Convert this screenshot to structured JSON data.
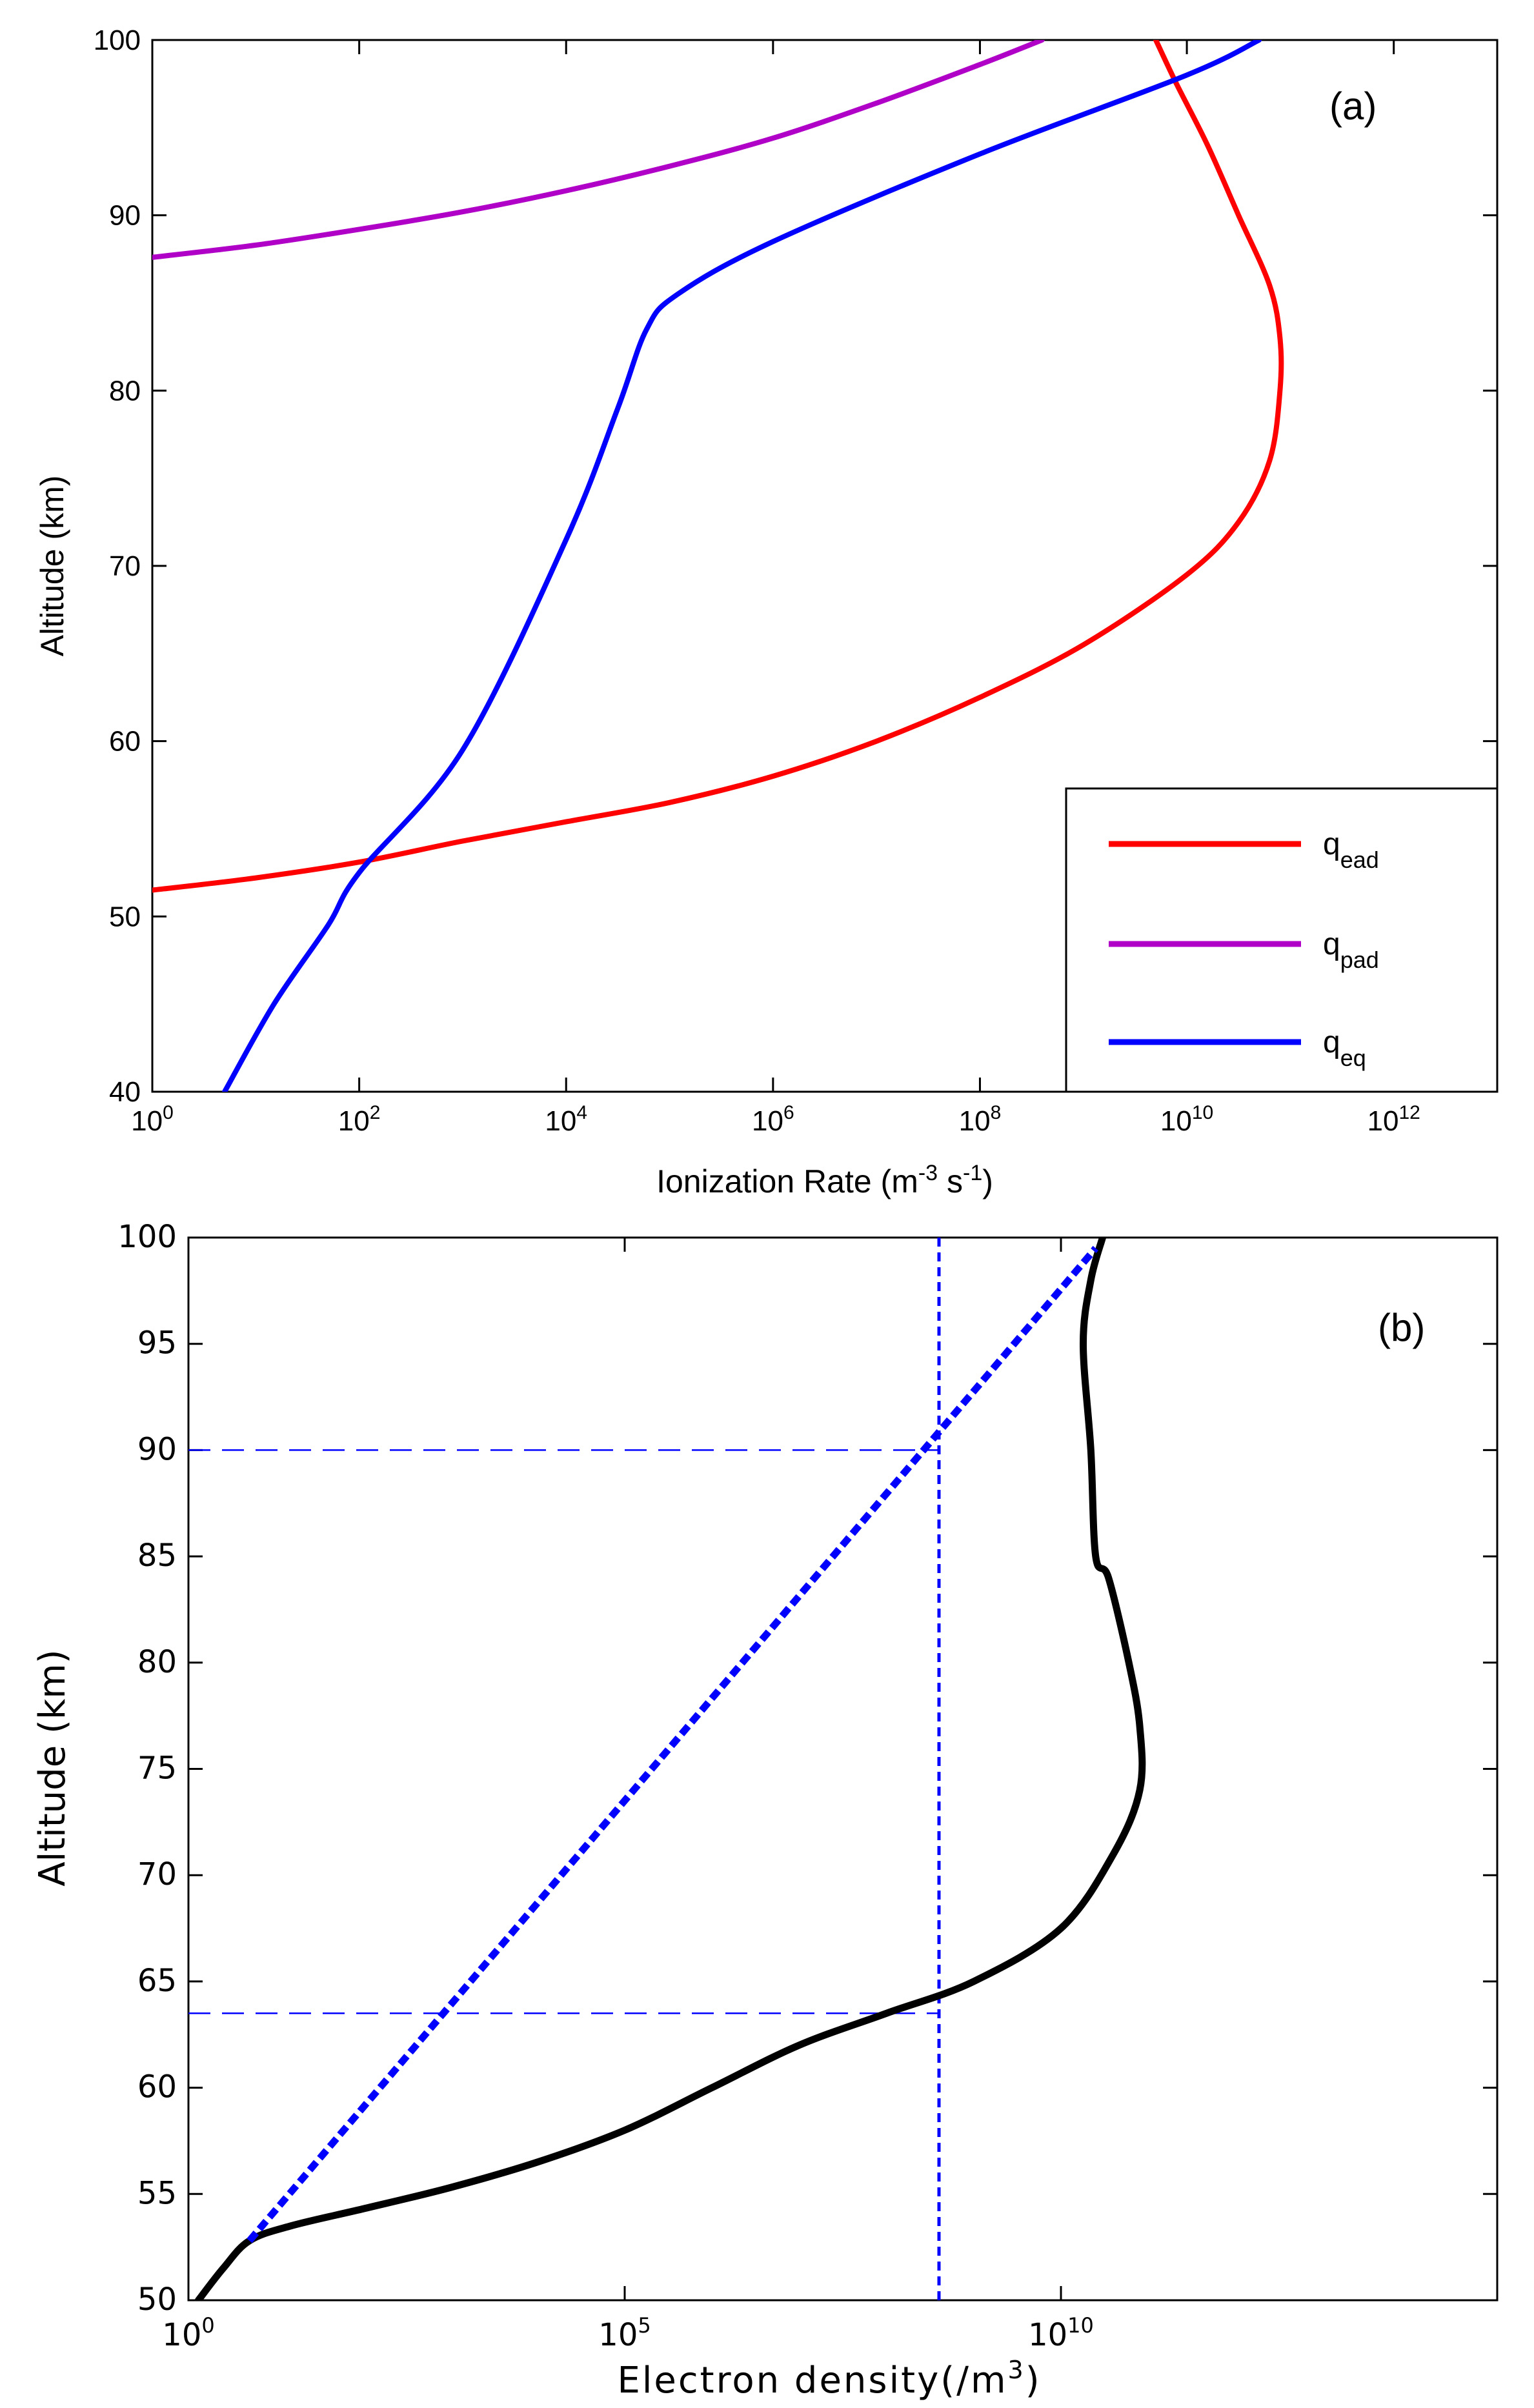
{
  "chart_data": [
    {
      "type": "line",
      "panel_label": "(a)",
      "xlabel": {
        "main": "Ionization Rate (m",
        "sup1": "-3",
        "mid": " s",
        "sup2": "-1",
        "end": ")"
      },
      "ylabel": "Altitude (km)",
      "xscale": "log",
      "xlim": [
        1,
        10000000000000.0
      ],
      "ylim": [
        40,
        100
      ],
      "xticks": [
        {
          "value": 1,
          "base": "10",
          "exp": "0"
        },
        {
          "value": 100,
          "base": "10",
          "exp": "2"
        },
        {
          "value": 10000,
          "base": "10",
          "exp": "4"
        },
        {
          "value": 1000000,
          "base": "10",
          "exp": "6"
        },
        {
          "value": 100000000,
          "base": "10",
          "exp": "8"
        },
        {
          "value": 10000000000,
          "base": "10",
          "exp": "10"
        },
        {
          "value": 1000000000000,
          "base": "10",
          "exp": "12"
        }
      ],
      "yticks": [
        {
          "value": 40,
          "label": "40"
        },
        {
          "value": 50,
          "label": "50"
        },
        {
          "value": 60,
          "label": "60"
        },
        {
          "value": 70,
          "label": "70"
        },
        {
          "value": 80,
          "label": "80"
        },
        {
          "value": 90,
          "label": "90"
        },
        {
          "value": 100,
          "label": "100"
        }
      ],
      "legend_position": "bottom-right",
      "series": [
        {
          "name": "q_ead",
          "legend": {
            "base": "q",
            "sub": "ead"
          },
          "color": "#ff0000",
          "points": [
            [
              1,
              51.5
            ],
            [
              10,
              52.2
            ],
            [
              100,
              53.1
            ],
            [
              1000,
              54.3
            ],
            [
              10000,
              55.4
            ],
            [
              100000,
              56.5
            ],
            [
              1000000,
              58.0
            ],
            [
              10000000,
              60.0
            ],
            [
              100000000,
              62.5
            ],
            [
              1000000000,
              65.5
            ],
            [
              10000000000,
              69.5
            ],
            [
              31622776601,
              72.5
            ],
            [
              63095734448,
              76.0
            ],
            [
              79432823472,
              80.0
            ],
            [
              79432823472,
              83.0
            ],
            [
              63095734448,
              86.0
            ],
            [
              31622776601,
              90.0
            ],
            [
              15848931925,
              94.0
            ],
            [
              7943282347,
              97.5
            ],
            [
              5011872336,
              100.0
            ]
          ]
        },
        {
          "name": "q_pad",
          "legend": {
            "base": "q",
            "sub": "pad"
          },
          "color": "#b000c8",
          "points": [
            [
              1,
              87.6
            ],
            [
              10,
              88.3
            ],
            [
              100,
              89.2
            ],
            [
              1000,
              90.2
            ],
            [
              10000,
              91.4
            ],
            [
              100000,
              92.8
            ],
            [
              1000000,
              94.4
            ],
            [
              10000000,
              96.4
            ],
            [
              100000000,
              98.6
            ],
            [
              398107171,
              100.0
            ]
          ]
        },
        {
          "name": "q_eq",
          "legend": {
            "base": "q",
            "sub": "eq"
          },
          "color": "#0000ff",
          "points": [
            [
              5,
              40.0
            ],
            [
              15,
              45.0
            ],
            [
              50,
              49.5
            ],
            [
              100,
              52.5
            ],
            [
              1000,
              59.5
            ],
            [
              10000,
              71.5
            ],
            [
              31622,
              79.0
            ],
            [
              60000,
              83.5
            ],
            [
              120000,
              85.5
            ],
            [
              1000000,
              88.5
            ],
            [
              100000000,
              93.5
            ],
            [
              10000000000,
              98.0
            ],
            [
              50000000000,
              100.0
            ]
          ]
        }
      ]
    },
    {
      "type": "line",
      "panel_label": "(b)",
      "xlabel": {
        "main": "Electron density(/m",
        "sup1": "3",
        "end": ")"
      },
      "ylabel": "Altitude (km)",
      "xscale": "log",
      "xlim": [
        1,
        1000000000000000.0
      ],
      "ylim": [
        50,
        100
      ],
      "xticks": [
        {
          "value": 1,
          "base": "10",
          "exp": "0"
        },
        {
          "value": 100000,
          "base": "10",
          "exp": "5"
        },
        {
          "value": 10000000000,
          "base": "10",
          "exp": "10"
        }
      ],
      "yticks": [
        {
          "value": 50,
          "label": "50"
        },
        {
          "value": 55,
          "label": "55"
        },
        {
          "value": 60,
          "label": "60"
        },
        {
          "value": 65,
          "label": "65"
        },
        {
          "value": 70,
          "label": "70"
        },
        {
          "value": 75,
          "label": "75"
        },
        {
          "value": 80,
          "label": "80"
        },
        {
          "value": 85,
          "label": "85"
        },
        {
          "value": 90,
          "label": "90"
        },
        {
          "value": 95,
          "label": "95"
        },
        {
          "value": 100,
          "label": "100"
        }
      ],
      "series": [
        {
          "name": "electron-density",
          "style": "solid",
          "color": "#000000",
          "points": [
            [
              1.3,
              50.0
            ],
            [
              2.5,
              51.5
            ],
            [
              5,
              52.8
            ],
            [
              15,
              53.5
            ],
            [
              100,
              54.3
            ],
            [
              1000,
              55.3
            ],
            [
              10000,
              56.5
            ],
            [
              100000,
              58.0
            ],
            [
              1000000,
              60.0
            ],
            [
              10000000,
              62.0
            ],
            [
              100000000,
              63.5
            ],
            [
              1000000000,
              65.0
            ],
            [
              10000000000,
              67.5
            ],
            [
              40000000000,
              71.0
            ],
            [
              80000000000,
              74.0
            ],
            [
              80000000000,
              77.0
            ],
            [
              60000000000,
              80.0
            ],
            [
              35000000000,
              84.0
            ],
            [
              25000000000,
              85.0
            ],
            [
              22000000000,
              90.0
            ],
            [
              18000000000,
              95.0
            ],
            [
              22000000000,
              98.0
            ],
            [
              30000000000,
              100.0
            ]
          ]
        },
        {
          "name": "reference-line",
          "style": "dashed",
          "color": "#0000ff",
          "points": [
            [
              5,
              52.8
            ],
            [
              25000000000,
              99.5
            ]
          ]
        }
      ],
      "reference_lines": [
        {
          "orientation": "vertical",
          "x": 400000000,
          "style": "dashed",
          "color": "#0000ff"
        },
        {
          "orientation": "horizontal",
          "y": 90.0,
          "style": "dashed",
          "color": "#0000ff"
        },
        {
          "orientation": "horizontal",
          "y": 63.5,
          "style": "dashed",
          "color": "#0000ff"
        }
      ]
    }
  ]
}
